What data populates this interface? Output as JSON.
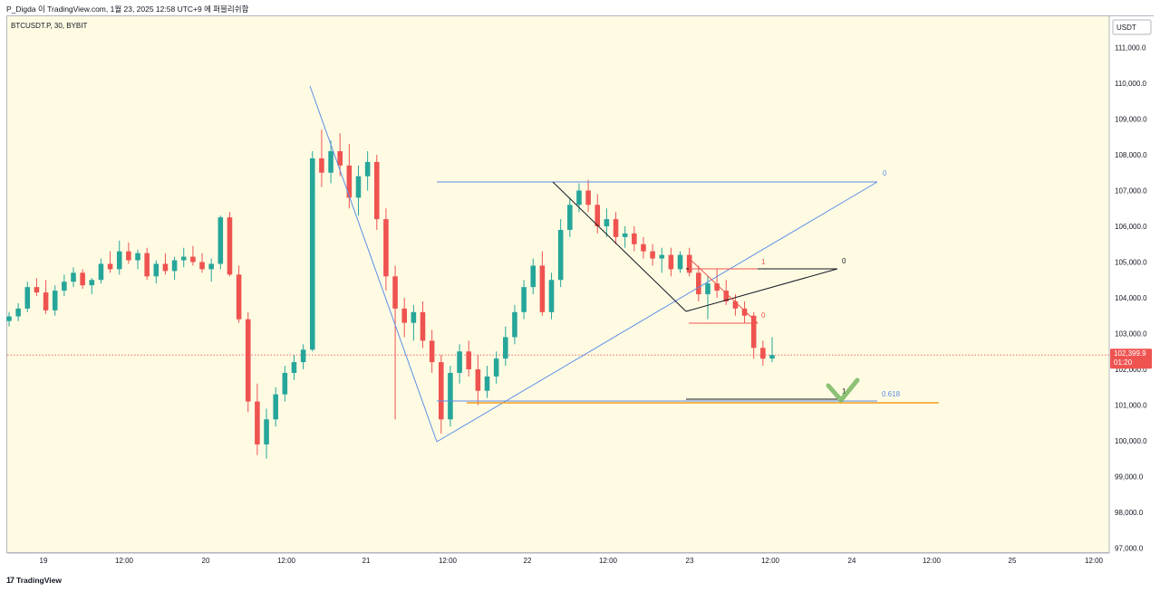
{
  "header": {
    "text": "P_Digda 이 TradingView.com, 1월 23, 2025 12:58 UTC+9 에 퍼블리쉬함"
  },
  "footer": {
    "logo_mark": "17",
    "logo_text": "TradingView"
  },
  "colors": {
    "background": "#fffbe3",
    "up": "#26a69a",
    "down": "#ef5350",
    "blue_line": "#5b8ee6",
    "black_line": "#131722",
    "red_line": "#ef5350",
    "orange_line": "#f0a020",
    "check": "#6fb35a",
    "price_badge": "#ef5350"
  },
  "chart_data": {
    "type": "candlestick",
    "symbol": "BTCUSDT.P, 30, BYBIT",
    "currency_label": "USDT",
    "y_ticks": [
      "111,000.0",
      "110,000.0",
      "109,000.0",
      "108,000.0",
      "107,000.0",
      "106,000.0",
      "105,000.0",
      "104,000.0",
      "103,000.0",
      "102,000.0",
      "101,000.0",
      "100,000.0",
      "99,000.0",
      "98,000.0",
      "97,000.0"
    ],
    "x_ticks": [
      "19",
      "12:00",
      "20",
      "12:00",
      "21",
      "12:00",
      "22",
      "12:00",
      "23",
      "12:00",
      "24",
      "12:00",
      "25",
      "12:00"
    ],
    "ylim": [
      96900,
      111950
    ],
    "x_range_hours": [
      0,
      336
    ],
    "last_price": "102,399.9",
    "countdown": "01:20",
    "candles": [
      [
        103350,
        103600,
        103200,
        103480
      ],
      [
        103480,
        103850,
        103350,
        103700
      ],
      [
        103700,
        104450,
        103600,
        104300
      ],
      [
        104300,
        104550,
        104050,
        104150
      ],
      [
        104150,
        104500,
        103550,
        103650
      ],
      [
        103650,
        104350,
        103500,
        104200
      ],
      [
        104200,
        104650,
        104050,
        104450
      ],
      [
        104450,
        104850,
        104300,
        104700
      ],
      [
        104700,
        104800,
        104250,
        104350
      ],
      [
        104350,
        104550,
        104100,
        104500
      ],
      [
        104500,
        105100,
        104400,
        104950
      ],
      [
        104950,
        105300,
        104700,
        104800
      ],
      [
        104800,
        105600,
        104650,
        105300
      ],
      [
        105300,
        105550,
        104950,
        105050
      ],
      [
        105050,
        105350,
        104800,
        105250
      ],
      [
        105250,
        105400,
        104500,
        104600
      ],
      [
        104600,
        105050,
        104400,
        104950
      ],
      [
        104950,
        105250,
        104650,
        104750
      ],
      [
        104750,
        105150,
        104500,
        105050
      ],
      [
        105050,
        105400,
        104850,
        105150
      ],
      [
        105150,
        105450,
        104900,
        105000
      ],
      [
        105000,
        105250,
        104700,
        104800
      ],
      [
        104800,
        105100,
        104450,
        104950
      ],
      [
        104950,
        106300,
        104800,
        106250
      ],
      [
        106250,
        106400,
        104600,
        104650
      ],
      [
        104650,
        104900,
        103300,
        103400
      ],
      [
        103400,
        103600,
        100800,
        101100
      ],
      [
        101100,
        101600,
        99600,
        99900
      ],
      [
        99900,
        100900,
        99500,
        100600
      ],
      [
        100600,
        101500,
        100400,
        101300
      ],
      [
        101300,
        102100,
        101100,
        101900
      ],
      [
        101900,
        102400,
        101700,
        102200
      ],
      [
        102200,
        102700,
        102000,
        102550
      ],
      [
        102550,
        108100,
        102500,
        107900
      ],
      [
        107900,
        108700,
        107100,
        107500
      ],
      [
        107500,
        108400,
        107200,
        108100
      ],
      [
        108100,
        108600,
        107400,
        107700
      ],
      [
        107700,
        108300,
        106500,
        106800
      ],
      [
        106800,
        107700,
        106300,
        107400
      ],
      [
        107400,
        108100,
        107000,
        107800
      ],
      [
        107800,
        108000,
        105900,
        106200
      ],
      [
        106200,
        106500,
        104200,
        104600
      ],
      [
        104600,
        104900,
        100600,
        103700
      ],
      [
        103700,
        104000,
        102900,
        103300
      ],
      [
        103300,
        103800,
        102800,
        103600
      ],
      [
        103600,
        103900,
        102600,
        102800
      ],
      [
        102800,
        103100,
        101900,
        102200
      ],
      [
        102200,
        102400,
        100200,
        100600
      ],
      [
        100600,
        102100,
        100400,
        101900
      ],
      [
        101900,
        102700,
        101600,
        102500
      ],
      [
        102500,
        102800,
        101800,
        102000
      ],
      [
        102000,
        102400,
        101000,
        101400
      ],
      [
        101400,
        102100,
        101200,
        101800
      ],
      [
        101800,
        102500,
        101600,
        102300
      ],
      [
        102300,
        103200,
        102100,
        102900
      ],
      [
        102900,
        103800,
        102700,
        103600
      ],
      [
        103600,
        104500,
        103400,
        104300
      ],
      [
        104300,
        105100,
        104100,
        104900
      ],
      [
        104900,
        105300,
        103500,
        103600
      ],
      [
        103600,
        104700,
        103400,
        104500
      ],
      [
        104500,
        106200,
        104300,
        105900
      ],
      [
        105900,
        106800,
        105700,
        106600
      ],
      [
        106600,
        107200,
        106400,
        107000
      ],
      [
        107000,
        107300,
        106400,
        106600
      ],
      [
        106600,
        106900,
        105800,
        106000
      ],
      [
        106000,
        106500,
        105700,
        106200
      ],
      [
        106200,
        106400,
        105500,
        105700
      ],
      [
        105700,
        106000,
        105400,
        105800
      ],
      [
        105800,
        106000,
        105300,
        105500
      ],
      [
        105500,
        105700,
        105100,
        105300
      ],
      [
        105300,
        105500,
        104900,
        105100
      ],
      [
        105100,
        105400,
        104700,
        105200
      ],
      [
        105200,
        105400,
        104600,
        104800
      ],
      [
        104800,
        105300,
        104700,
        105200
      ],
      [
        105200,
        105400,
        104600,
        104700
      ],
      [
        104700,
        104900,
        103900,
        104100
      ],
      [
        104100,
        104600,
        103400,
        104400
      ],
      [
        104400,
        104800,
        104000,
        104200
      ],
      [
        104200,
        104500,
        103800,
        103900
      ],
      [
        103900,
        104100,
        103500,
        103700
      ],
      [
        103700,
        103900,
        103300,
        103500
      ],
      [
        103500,
        103600,
        102300,
        102600
      ],
      [
        102600,
        102800,
        102100,
        102300
      ],
      [
        102300,
        102900,
        102200,
        102400
      ]
    ],
    "annotations": {
      "fib_blue_label_0": "0",
      "fib_blue_label_618": "0.618",
      "black_label_0": "0",
      "black_label_1": "1",
      "red_label_1": "1",
      "red_label_0": "0"
    }
  }
}
